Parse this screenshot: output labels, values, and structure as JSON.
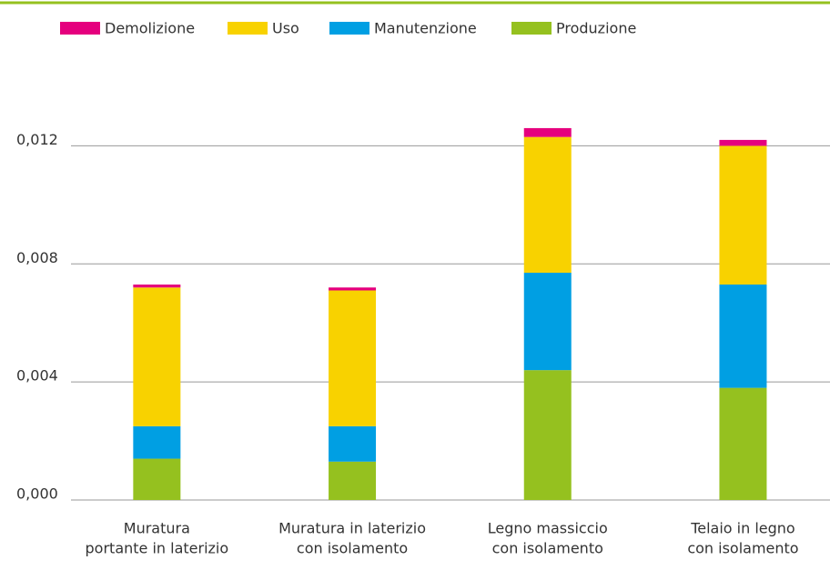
{
  "chart_data": {
    "type": "stacked_bar",
    "categories": [
      [
        "Muratura",
        "portante in laterizio"
      ],
      [
        "Muratura in laterizio",
        "con isolamento"
      ],
      [
        "Legno massiccio",
        "con isolamento"
      ],
      [
        "Telaio in legno",
        "con isolamento"
      ]
    ],
    "series": [
      {
        "name": "Produzione",
        "color": "#95c11f",
        "values": [
          0.0014,
          0.0013,
          0.0044,
          0.0038
        ]
      },
      {
        "name": "Manutenzione",
        "color": "#009fe3",
        "values": [
          0.0011,
          0.0012,
          0.0033,
          0.0035
        ]
      },
      {
        "name": "Uso",
        "color": "#f8d200",
        "values": [
          0.0047,
          0.0046,
          0.0046,
          0.0047
        ]
      },
      {
        "name": "Demolizione",
        "color": "#e5007e",
        "values": [
          0.0001,
          0.0001,
          0.0003,
          0.0002
        ]
      }
    ],
    "ylim": [
      0,
      0.015
    ],
    "yticks": [
      {
        "value": 0,
        "label": "0,000"
      },
      {
        "value": 0.004,
        "label": "0,004"
      },
      {
        "value": 0.008,
        "label": "0,008"
      },
      {
        "value": 0.012,
        "label": "0,012"
      }
    ],
    "grid": true,
    "legend": "top"
  }
}
